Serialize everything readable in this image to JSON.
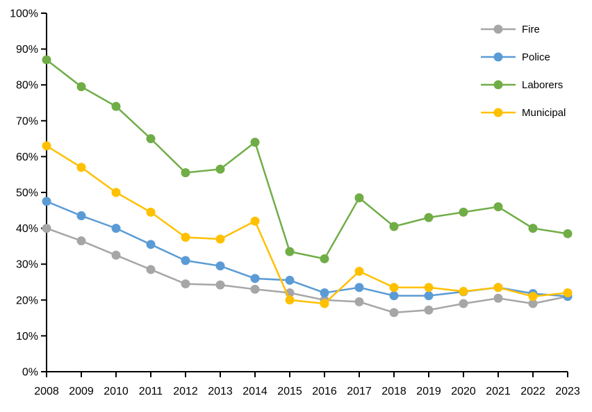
{
  "chart_data": {
    "type": "line",
    "title": "",
    "xlabel": "",
    "ylabel": "",
    "x": [
      2008,
      2009,
      2010,
      2011,
      2012,
      2013,
      2014,
      2015,
      2016,
      2017,
      2018,
      2019,
      2020,
      2021,
      2022,
      2023
    ],
    "x_tick_labels": [
      "2008",
      "2009",
      "2010",
      "2011",
      "2012",
      "2013",
      "2014",
      "2015",
      "2016",
      "2017",
      "2018",
      "2019",
      "2020",
      "2021",
      "2022",
      "2023"
    ],
    "y_ticks": [
      0,
      10,
      20,
      30,
      40,
      50,
      60,
      70,
      80,
      90,
      100
    ],
    "y_tick_labels": [
      "0%",
      "10%",
      "20%",
      "30%",
      "40%",
      "50%",
      "60%",
      "70%",
      "80%",
      "90%",
      "100%"
    ],
    "ylim": [
      0,
      100
    ],
    "grid": false,
    "legend_position": "inside-top-right",
    "axis_color": "#000000",
    "series": [
      {
        "name": "Fire",
        "color": "#A6A6A6",
        "values": [
          40.0,
          36.5,
          32.5,
          28.5,
          24.5,
          24.2,
          23.0,
          22.0,
          20.0,
          19.5,
          16.5,
          17.2,
          19.0,
          20.5,
          19.0,
          21.0
        ]
      },
      {
        "name": "Police",
        "color": "#5B9BD5",
        "values": [
          47.5,
          43.5,
          40.0,
          35.5,
          31.0,
          29.5,
          26.0,
          25.5,
          22.0,
          23.5,
          21.2,
          21.2,
          22.3,
          23.5,
          21.8,
          21.0
        ]
      },
      {
        "name": "Laborers",
        "color": "#70AD47",
        "values": [
          87.0,
          79.5,
          74.0,
          65.0,
          55.5,
          56.5,
          64.0,
          33.5,
          31.5,
          48.5,
          40.5,
          43.0,
          44.5,
          46.0,
          40.0,
          38.5
        ]
      },
      {
        "name": "Municipal",
        "color": "#FFC000",
        "values": [
          63.0,
          57.0,
          50.0,
          44.5,
          37.5,
          37.0,
          42.0,
          20.0,
          19.0,
          28.0,
          23.5,
          23.5,
          22.4,
          23.5,
          21.0,
          22.0
        ]
      }
    ]
  }
}
